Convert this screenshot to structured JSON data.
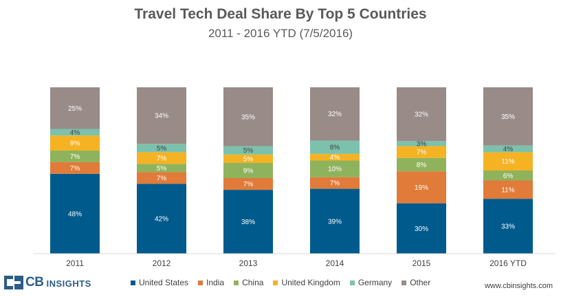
{
  "header": {
    "title": "Travel Tech Deal Share By Top 5 Countries",
    "subtitle": "2011 - 2016 YTD (7/5/2016)"
  },
  "chart_data": {
    "type": "bar",
    "stacked": true,
    "percent": true,
    "title": "Travel Tech Deal Share By Top 5 Countries",
    "subtitle": "2011 - 2016 YTD (7/5/2016)",
    "xlabel": "",
    "ylabel": "",
    "ylim": [
      0,
      100
    ],
    "grid": false,
    "legend_position": "bottom",
    "categories": [
      "2011",
      "2012",
      "2013",
      "2014",
      "2015",
      "2016 YTD"
    ],
    "series": [
      {
        "name": "United States",
        "color": "#005a8c",
        "label_color": "#ffffff",
        "values": [
          48,
          42,
          38,
          39,
          30,
          33
        ]
      },
      {
        "name": "India",
        "color": "#e07b39",
        "label_color": "#ffffff",
        "values": [
          7,
          7,
          7,
          7,
          19,
          11
        ]
      },
      {
        "name": "China",
        "color": "#8fb35c",
        "label_color": "#ffffff",
        "values": [
          7,
          5,
          9,
          10,
          8,
          6
        ]
      },
      {
        "name": "United Kingdom",
        "color": "#f5b223",
        "label_color": "#ffffff",
        "values": [
          9,
          7,
          5,
          4,
          7,
          11
        ]
      },
      {
        "name": "Germany",
        "color": "#7cc1ab",
        "label_color": "#404040",
        "values": [
          4,
          5,
          5,
          8,
          3,
          4
        ]
      },
      {
        "name": "Other",
        "color": "#998b88",
        "label_color": "#ffffff",
        "values": [
          25,
          34,
          35,
          32,
          32,
          35
        ]
      }
    ]
  },
  "footer": {
    "logo_cb": "CB",
    "logo_insights": "INSIGHTS",
    "website": "www.cbinsights.com"
  }
}
